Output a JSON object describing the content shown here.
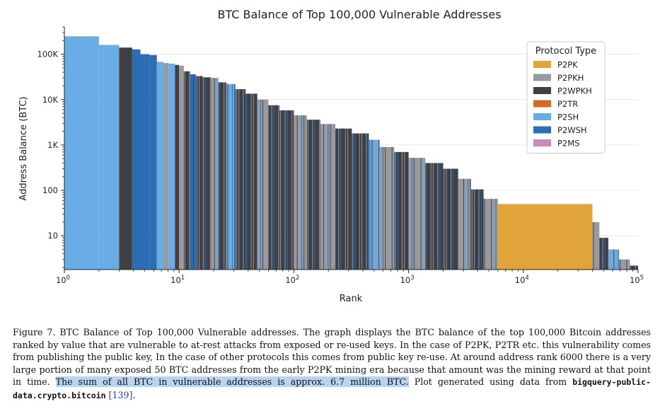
{
  "chart_data": {
    "type": "bar",
    "title": "BTC Balance of Top 100,000 Vulnerable Addresses",
    "xlabel": "Rank",
    "ylabel": "Address Balance (BTC)",
    "xscale": "log",
    "yscale": "log",
    "xlim": [
      1,
      100000
    ],
    "ylim": [
      1.8,
      400000
    ],
    "x_ticks": [
      {
        "base": "10",
        "exp": "0"
      },
      {
        "base": "10",
        "exp": "1"
      },
      {
        "base": "10",
        "exp": "2"
      },
      {
        "base": "10",
        "exp": "3"
      },
      {
        "base": "10",
        "exp": "4"
      },
      {
        "base": "10",
        "exp": "5"
      }
    ],
    "y_ticks": [
      {
        "value": 10,
        "label": "10"
      },
      {
        "value": 100,
        "label": "100"
      },
      {
        "value": 1000,
        "label": "1K"
      },
      {
        "value": 10000,
        "label": "10K"
      },
      {
        "value": 100000,
        "label": "100K"
      }
    ],
    "legend": {
      "title": "Protocol Type",
      "position": "upper-right",
      "items": [
        {
          "label": "P2PK",
          "color": "#e0a43a"
        },
        {
          "label": "P2PKH",
          "color": "#9a9a9e"
        },
        {
          "label": "P2WPKH",
          "color": "#3f3f44"
        },
        {
          "label": "P2TR",
          "color": "#cf6a2a"
        },
        {
          "label": "P2SH",
          "color": "#6aade6"
        },
        {
          "label": "P2WSH",
          "color": "#2c6db3"
        },
        {
          "label": "P2MS",
          "color": "#c98bbd"
        }
      ]
    },
    "series": [
      {
        "rank_start": 1,
        "rank_end": 2,
        "balance": 248000,
        "type": "P2SH"
      },
      {
        "rank_start": 2,
        "rank_end": 3,
        "balance": 160000,
        "type": "P2SH"
      },
      {
        "rank_start": 3,
        "rank_end": 3.9,
        "balance": 140000,
        "type": "P2WPKH"
      },
      {
        "rank_start": 3.9,
        "rank_end": 4.6,
        "balance": 128000,
        "type": "P2WSH"
      },
      {
        "rank_start": 4.6,
        "rank_end": 5.5,
        "balance": 100000,
        "type": "P2WSH"
      },
      {
        "rank_start": 5.5,
        "rank_end": 6.4,
        "balance": 96000,
        "type": "P2WSH"
      },
      {
        "rank_start": 6.4,
        "rank_end": 7.3,
        "balance": 68000,
        "type": "P2SH"
      },
      {
        "rank_start": 7.3,
        "rank_end": 8.1,
        "balance": 64000,
        "type": "P2PKH"
      },
      {
        "rank_start": 8.1,
        "rank_end": 9.2,
        "balance": 62000,
        "type": "P2SH"
      },
      {
        "rank_start": 9.2,
        "rank_end": 10,
        "balance": 58000,
        "type": "P2WPKH"
      },
      {
        "rank_start": 10,
        "rank_end": 11,
        "balance": 56000,
        "type": "P2PKH"
      },
      {
        "rank_start": 11,
        "rank_end": 12.5,
        "balance": 42000,
        "type": "P2WPKH"
      },
      {
        "rank_start": 12.5,
        "rank_end": 14,
        "balance": 36000,
        "type": "P2WSH"
      },
      {
        "rank_start": 14,
        "rank_end": 16,
        "balance": 33000,
        "type": "P2WPKH"
      },
      {
        "rank_start": 16,
        "rank_end": 19,
        "balance": 31000,
        "type": "P2WPKH"
      },
      {
        "rank_start": 19,
        "rank_end": 22,
        "balance": 30000,
        "type": "P2PKH"
      },
      {
        "rank_start": 22,
        "rank_end": 26,
        "balance": 24000,
        "type": "P2WPKH"
      },
      {
        "rank_start": 26,
        "rank_end": 31,
        "balance": 22000,
        "type": "P2SH"
      },
      {
        "rank_start": 31,
        "rank_end": 38,
        "balance": 17000,
        "type": "P2WPKH"
      },
      {
        "rank_start": 38,
        "rank_end": 48,
        "balance": 13500,
        "type": "P2WPKH"
      },
      {
        "rank_start": 48,
        "rank_end": 60,
        "balance": 10000,
        "type": "P2PKH"
      },
      {
        "rank_start": 60,
        "rank_end": 75,
        "balance": 7500,
        "type": "P2WPKH"
      },
      {
        "rank_start": 75,
        "rank_end": 100,
        "balance": 5800,
        "type": "P2WPKH"
      },
      {
        "rank_start": 100,
        "rank_end": 130,
        "balance": 4500,
        "type": "P2PKH"
      },
      {
        "rank_start": 130,
        "rank_end": 170,
        "balance": 3600,
        "type": "P2WPKH"
      },
      {
        "rank_start": 170,
        "rank_end": 230,
        "balance": 2900,
        "type": "P2PKH"
      },
      {
        "rank_start": 230,
        "rank_end": 320,
        "balance": 2300,
        "type": "P2WPKH"
      },
      {
        "rank_start": 320,
        "rank_end": 450,
        "balance": 1800,
        "type": "P2WPKH"
      },
      {
        "rank_start": 450,
        "rank_end": 560,
        "balance": 1300,
        "type": "P2SH"
      },
      {
        "rank_start": 560,
        "rank_end": 750,
        "balance": 900,
        "type": "P2PKH"
      },
      {
        "rank_start": 750,
        "rank_end": 1000,
        "balance": 700,
        "type": "P2WPKH"
      },
      {
        "rank_start": 1000,
        "rank_end": 1400,
        "balance": 520,
        "type": "P2PKH"
      },
      {
        "rank_start": 1400,
        "rank_end": 2000,
        "balance": 400,
        "type": "P2WPKH"
      },
      {
        "rank_start": 2000,
        "rank_end": 2700,
        "balance": 300,
        "type": "P2WPKH"
      },
      {
        "rank_start": 2700,
        "rank_end": 3500,
        "balance": 180,
        "type": "P2PKH"
      },
      {
        "rank_start": 3500,
        "rank_end": 4500,
        "balance": 105,
        "type": "P2WPKH"
      },
      {
        "rank_start": 4500,
        "rank_end": 6000,
        "balance": 65,
        "type": "P2PKH"
      },
      {
        "rank_start": 6000,
        "rank_end": 40000,
        "balance": 50,
        "type": "P2PK"
      },
      {
        "rank_start": 40000,
        "rank_end": 46000,
        "balance": 20,
        "type": "P2PKH"
      },
      {
        "rank_start": 46000,
        "rank_end": 55000,
        "balance": 9,
        "type": "P2WPKH"
      },
      {
        "rank_start": 55000,
        "rank_end": 68000,
        "balance": 5,
        "type": "P2SH"
      },
      {
        "rank_start": 68000,
        "rank_end": 85000,
        "balance": 3,
        "type": "P2PKH"
      },
      {
        "rank_start": 85000,
        "rank_end": 100000,
        "balance": 2.2,
        "type": "P2WPKH"
      }
    ]
  },
  "caption": {
    "lead": "Figure 7. BTC Balance of Top 100,000 Vulnerable addresses. The graph displays the BTC balance of the top 100,000 Bitcoin addresses ranked by value that are vulnerable to at-rest attacks from exposed or re-used keys. In the case of P2PK, P2TR etc. this vulnerability comes from publishing the public key, In the case of other protocols this comes from public key re-use. At around address rank 6000 there is a very large portion of many exposed 50 BTC addresses from the early P2PK mining era because that amount was the mining reward at that point in time. ",
    "highlight": "The sum of all BTC in vulnerable addresses is approx. 6.7 million BTC.",
    "plot_text": " Plot generated using data from ",
    "code": "bigquery-public-data.crypto.bitcoin",
    "ref": "[139]",
    "end": "."
  }
}
